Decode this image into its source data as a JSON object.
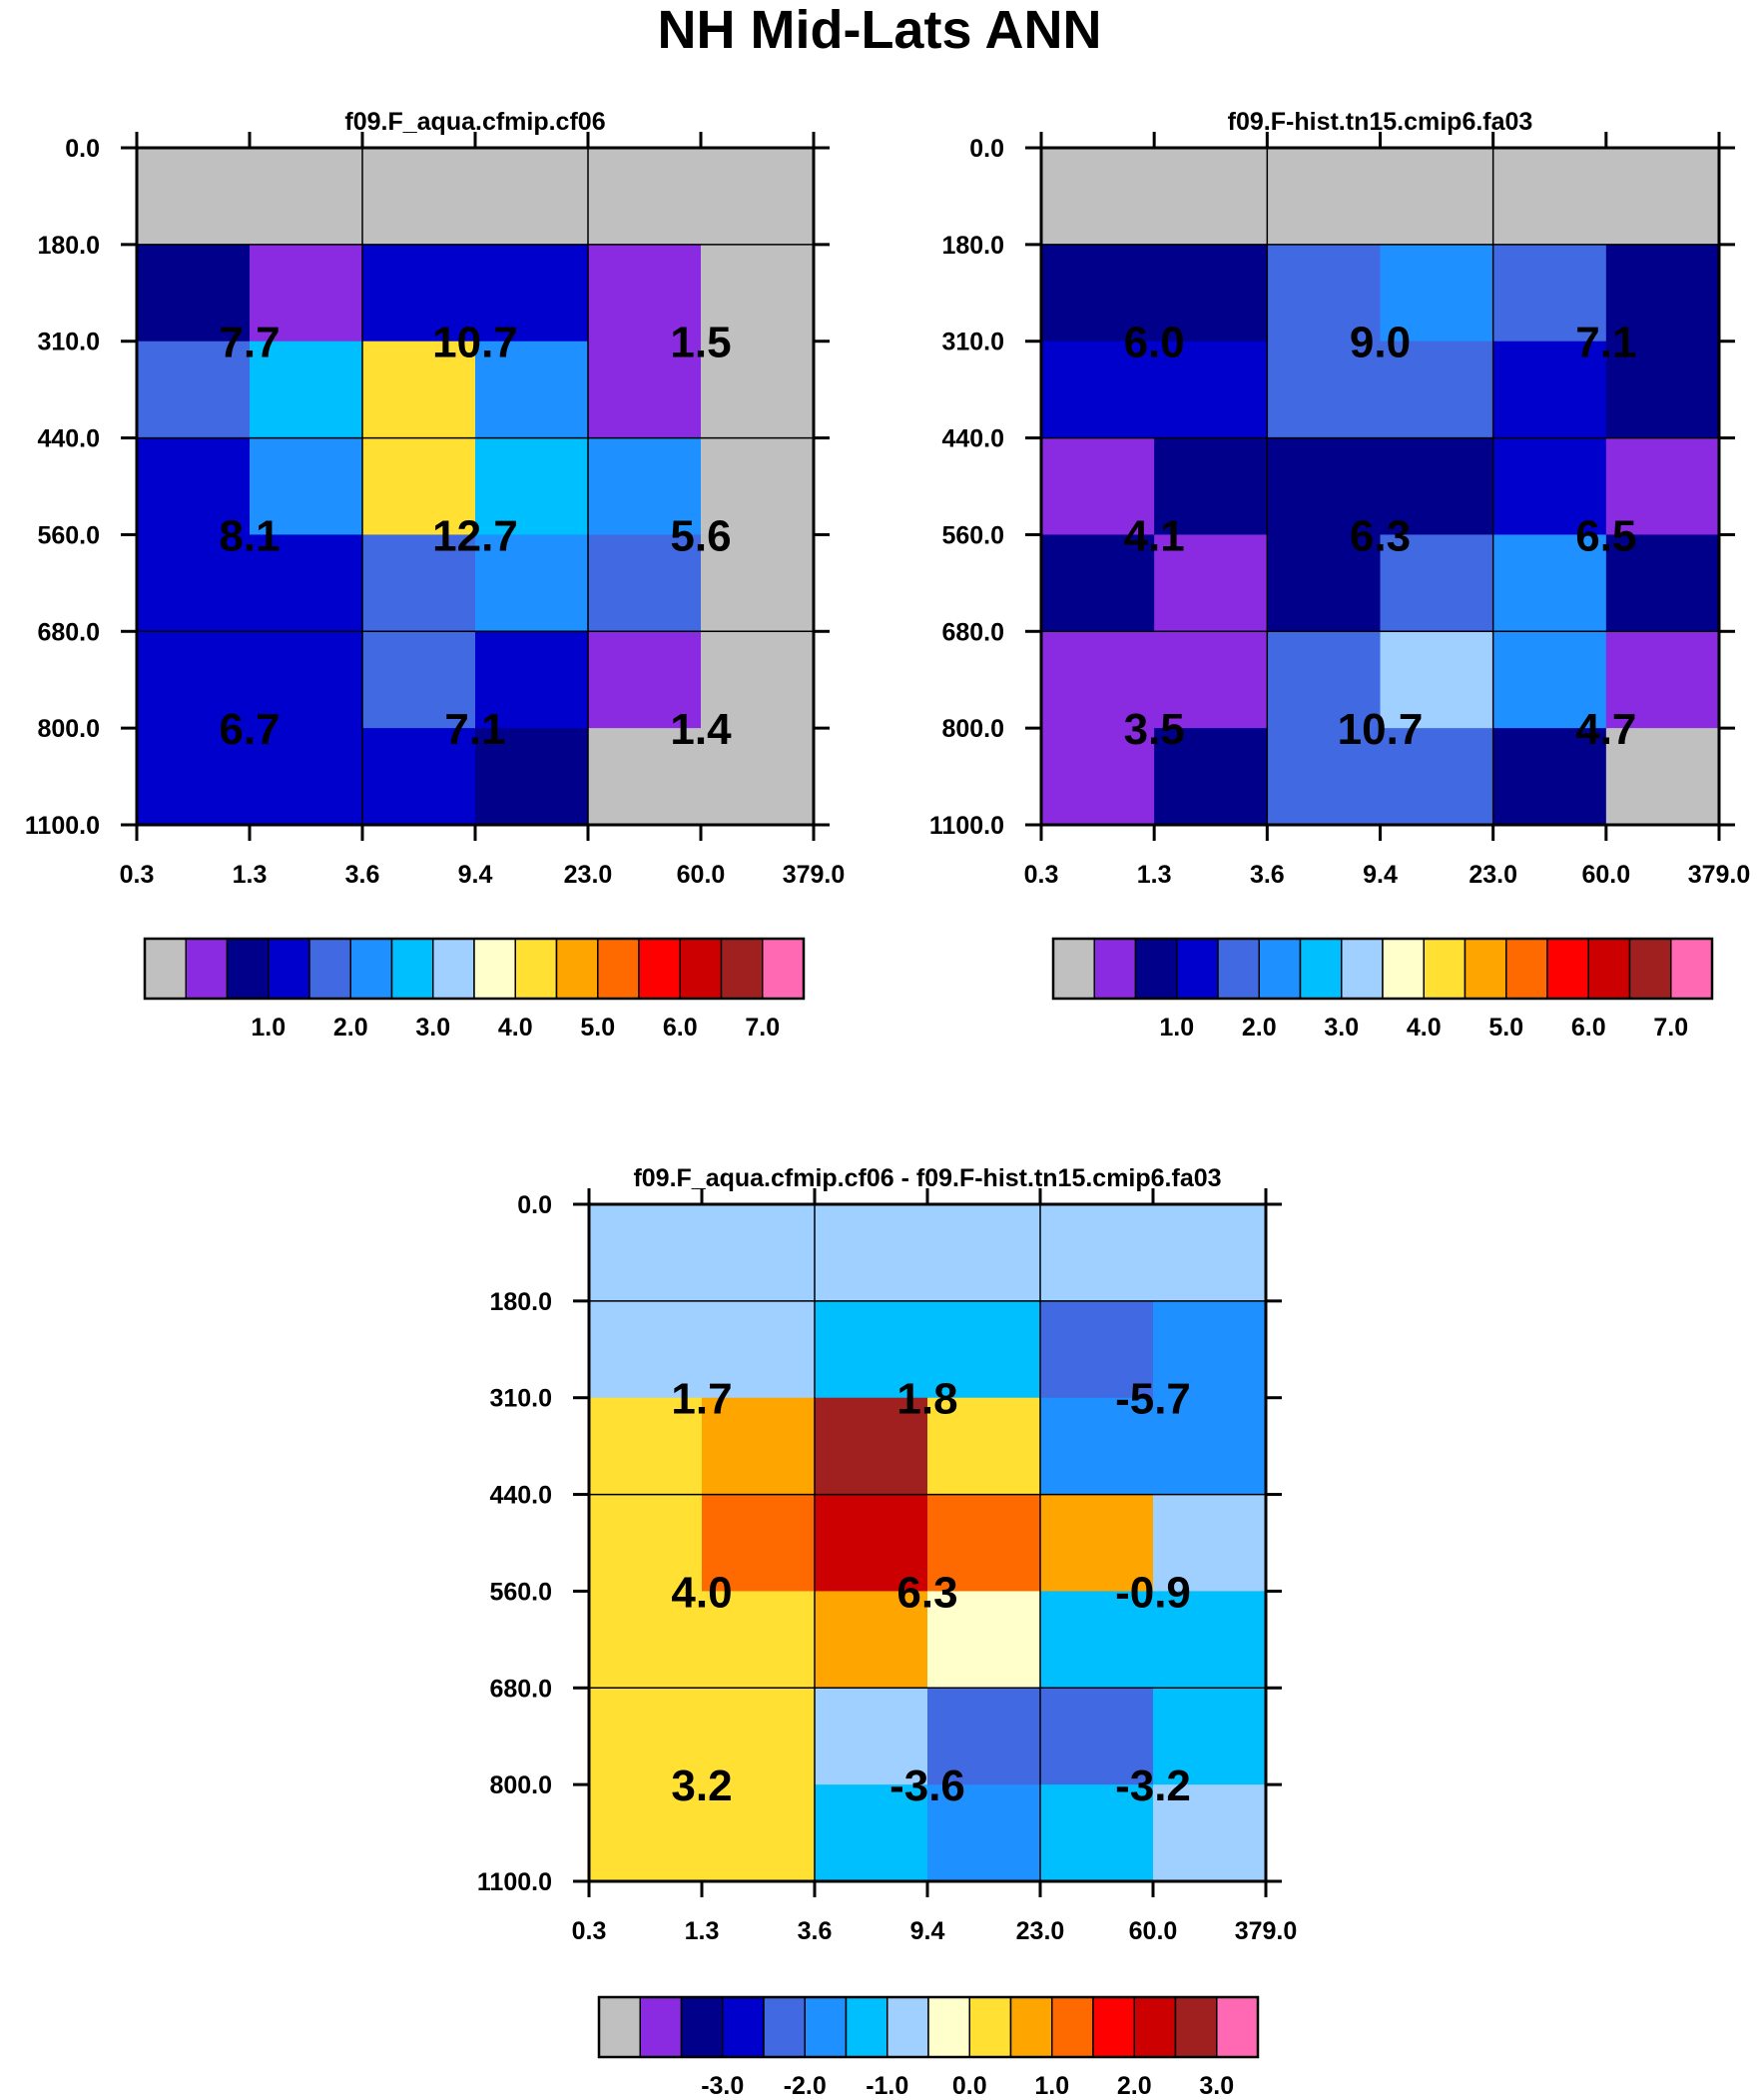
{
  "title": "NH Mid-Lats ANN",
  "chart_data": [
    {
      "type": "heatmap",
      "title": "f09.F_aqua.cfmip.cf06",
      "x_tick_labels": [
        "0.3",
        "1.3",
        "3.6",
        "9.4",
        "23.0",
        "60.0",
        "379.0"
      ],
      "y_tick_labels": [
        "0.0",
        "180.0",
        "310.0",
        "440.0",
        "560.0",
        "680.0",
        "800.0",
        "1100.0"
      ],
      "cells": [
        [
          "gray",
          "gray",
          "gray",
          "gray",
          "gray",
          "gray"
        ],
        [
          "navy",
          "purple",
          "blue",
          "blue",
          "purple",
          "gray"
        ],
        [
          "royalblue",
          "deepskyblue",
          "gold",
          "dodgerblue",
          "purple",
          "gray"
        ],
        [
          "blue",
          "dodgerblue",
          "gold",
          "deepskyblue",
          "dodgerblue",
          "gray"
        ],
        [
          "blue",
          "blue",
          "royalblue",
          "dodgerblue",
          "royalblue",
          "gray"
        ],
        [
          "blue",
          "blue",
          "royalblue",
          "blue",
          "purple",
          "gray"
        ],
        [
          "blue",
          "blue",
          "blue",
          "navy",
          "gray",
          "gray"
        ]
      ],
      "annotations": [
        [
          "7.7",
          "10.7",
          "1.5"
        ],
        [
          "8.1",
          "12.7",
          "5.6"
        ],
        [
          "6.7",
          "7.1",
          "1.4"
        ]
      ],
      "colorbar": {
        "colors": [
          "gray",
          "purple",
          "navy",
          "blue",
          "royalblue",
          "dodgerblue",
          "deepskyblue",
          "lightskyblue",
          "lightyellow",
          "gold",
          "orange",
          "darkorange",
          "red",
          "firebrick",
          "darkred",
          "hotpink"
        ],
        "labels": [
          "1.0",
          "2.0",
          "3.0",
          "4.0",
          "5.0",
          "6.0",
          "7.0"
        ]
      }
    },
    {
      "type": "heatmap",
      "title": "f09.F-hist.tn15.cmip6.fa03",
      "x_tick_labels": [
        "0.3",
        "1.3",
        "3.6",
        "9.4",
        "23.0",
        "60.0",
        "379.0"
      ],
      "y_tick_labels": [
        "0.0",
        "180.0",
        "310.0",
        "440.0",
        "560.0",
        "680.0",
        "800.0",
        "1100.0"
      ],
      "cells": [
        [
          "gray",
          "gray",
          "gray",
          "gray",
          "gray",
          "gray"
        ],
        [
          "navy",
          "navy",
          "royalblue",
          "dodgerblue",
          "royalblue",
          "navy"
        ],
        [
          "blue",
          "blue",
          "royalblue",
          "royalblue",
          "blue",
          "navy"
        ],
        [
          "purple",
          "navy",
          "navy",
          "navy",
          "blue",
          "purple"
        ],
        [
          "navy",
          "purple",
          "navy",
          "royalblue",
          "dodgerblue",
          "navy"
        ],
        [
          "purple",
          "purple",
          "royalblue",
          "lightskyblue",
          "dodgerblue",
          "purple"
        ],
        [
          "purple",
          "navy",
          "royalblue",
          "royalblue",
          "navy",
          "gray"
        ]
      ],
      "annotations": [
        [
          "6.0",
          "9.0",
          "7.1"
        ],
        [
          "4.1",
          "6.3",
          "6.5"
        ],
        [
          "3.5",
          "10.7",
          "4.7"
        ]
      ],
      "colorbar": {
        "colors": [
          "gray",
          "purple",
          "navy",
          "blue",
          "royalblue",
          "dodgerblue",
          "deepskyblue",
          "lightskyblue",
          "lightyellow",
          "gold",
          "orange",
          "darkorange",
          "red",
          "firebrick",
          "darkred",
          "hotpink"
        ],
        "labels": [
          "1.0",
          "2.0",
          "3.0",
          "4.0",
          "5.0",
          "6.0",
          "7.0"
        ]
      }
    },
    {
      "type": "heatmap",
      "title": "f09.F_aqua.cfmip.cf06 - f09.F-hist.tn15.cmip6.fa03",
      "x_tick_labels": [
        "0.3",
        "1.3",
        "3.6",
        "9.4",
        "23.0",
        "60.0",
        "379.0"
      ],
      "y_tick_labels": [
        "0.0",
        "180.0",
        "310.0",
        "440.0",
        "560.0",
        "680.0",
        "800.0",
        "1100.0"
      ],
      "cells": [
        [
          "lightskyblue",
          "lightskyblue",
          "lightskyblue",
          "lightskyblue",
          "lightskyblue",
          "lightskyblue"
        ],
        [
          "lightskyblue",
          "lightskyblue",
          "deepskyblue",
          "deepskyblue",
          "royalblue",
          "dodgerblue"
        ],
        [
          "gold",
          "orange",
          "darkred",
          "gold",
          "dodgerblue",
          "dodgerblue"
        ],
        [
          "gold",
          "darkorange",
          "firebrick",
          "darkorange",
          "orange",
          "lightskyblue"
        ],
        [
          "gold",
          "gold",
          "orange",
          "lightyellow",
          "deepskyblue",
          "deepskyblue"
        ],
        [
          "gold",
          "gold",
          "lightskyblue",
          "royalblue",
          "royalblue",
          "deepskyblue"
        ],
        [
          "gold",
          "gold",
          "deepskyblue",
          "dodgerblue",
          "deepskyblue",
          "lightskyblue"
        ]
      ],
      "annotations": [
        [
          "1.7",
          "1.8",
          "-5.7"
        ],
        [
          "4.0",
          "6.3",
          "-0.9"
        ],
        [
          "3.2",
          "-3.6",
          "-3.2"
        ]
      ],
      "colorbar": {
        "colors": [
          "gray",
          "purple",
          "navy",
          "blue",
          "royalblue",
          "dodgerblue",
          "deepskyblue",
          "lightskyblue",
          "lightyellow",
          "gold",
          "orange",
          "darkorange",
          "red",
          "firebrick",
          "darkred",
          "hotpink"
        ],
        "labels": [
          "-3.0",
          "-2.0",
          "-1.0",
          "0.0",
          "1.0",
          "2.0",
          "3.0"
        ]
      }
    }
  ],
  "palette": {
    "gray": "#c0c0c0",
    "purple": "#8a2be2",
    "navy": "#00008b",
    "blue": "#0000cd",
    "royalblue": "#4169e1",
    "dodgerblue": "#1e90ff",
    "deepskyblue": "#00bfff",
    "lightskyblue": "#a0d0ff",
    "lightyellow": "#ffffcc",
    "gold": "#ffe033",
    "orange": "#ffa500",
    "darkorange": "#ff6a00",
    "red": "#ff0000",
    "firebrick": "#cc0000",
    "darkred": "#a02020",
    "hotpink": "#ff69b4"
  }
}
